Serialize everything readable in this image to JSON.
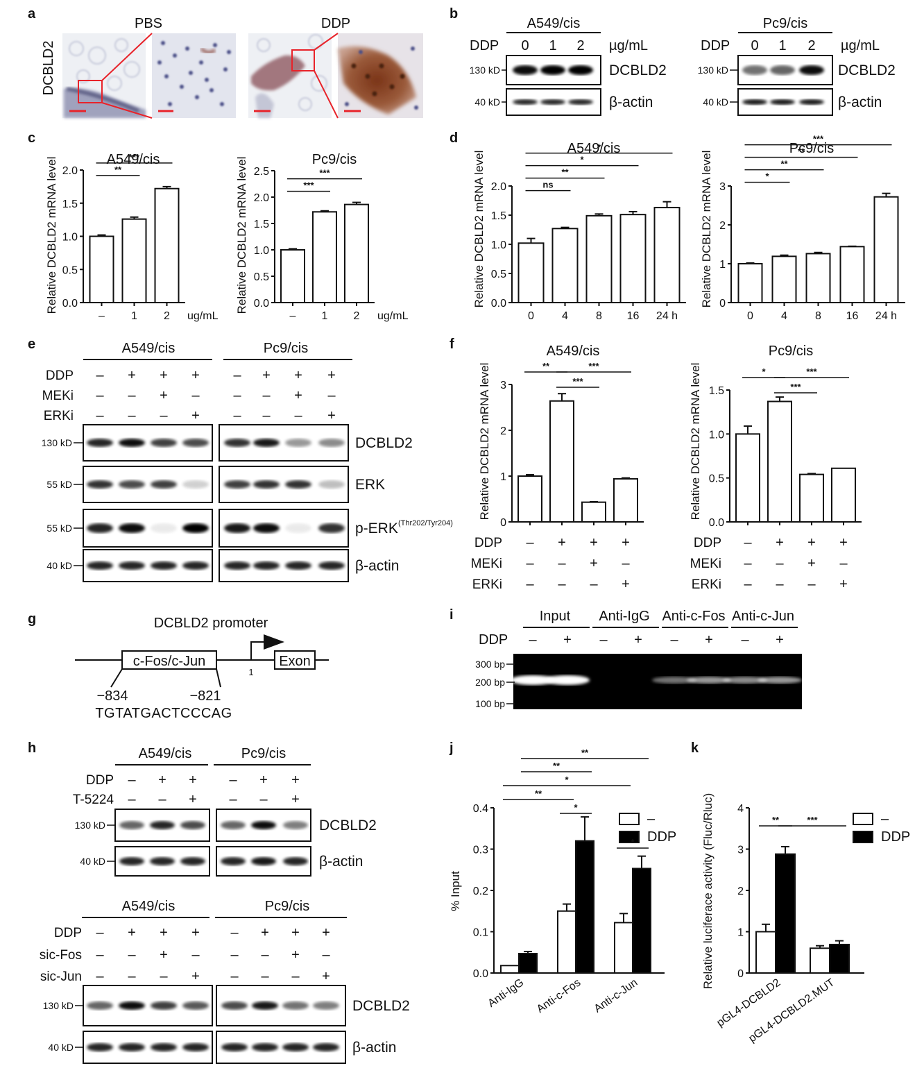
{
  "panel_labels": [
    "a",
    "b",
    "c",
    "d",
    "e",
    "f",
    "g",
    "h",
    "i",
    "j",
    "k"
  ],
  "a": {
    "ylabel": "DCBLD2",
    "conditions": [
      "PBS",
      "DDP"
    ]
  },
  "b": {
    "blots": [
      {
        "cell": "A549/cis",
        "treatment": "DDP",
        "doses": [
          "0",
          "1",
          "2"
        ],
        "unit": "µg/mL",
        "rows": [
          {
            "kd": "130 kD",
            "protein": "DCBLD2"
          },
          {
            "kd": "40 kD",
            "protein": "β-actin"
          }
        ]
      },
      {
        "cell": "Pc9/cis",
        "treatment": "DDP",
        "doses": [
          "0",
          "1",
          "2"
        ],
        "unit": "µg/mL",
        "rows": [
          {
            "kd": "130 kD",
            "protein": "DCBLD2"
          },
          {
            "kd": "40 kD",
            "protein": "β-actin"
          }
        ]
      }
    ]
  },
  "chart_data": [
    {
      "panel": "c",
      "type": "bar",
      "title": "A549/cis",
      "ylabel": "Relative DCBLD2 mRNA level",
      "categories": [
        "–",
        "1",
        "2"
      ],
      "xunit": "ug/mL",
      "values": [
        1.0,
        1.26,
        1.72
      ],
      "errors": [
        0.02,
        0.03,
        0.03
      ],
      "ylim": [
        0,
        2.0
      ],
      "yticks": [
        "0.0",
        "0.5",
        "1.0",
        "1.5",
        "2.0"
      ],
      "significance": [
        {
          "from": 0,
          "to": 1,
          "label": "**"
        },
        {
          "from": 0,
          "to": 2,
          "label": "***"
        }
      ]
    },
    {
      "panel": "c",
      "type": "bar",
      "title": "Pc9/cis",
      "ylabel": "Relative DCBLD2 mRNA level",
      "categories": [
        "–",
        "1",
        "2"
      ],
      "xunit": "ug/mL",
      "values": [
        1.0,
        1.72,
        1.86
      ],
      "errors": [
        0.02,
        0.02,
        0.04
      ],
      "ylim": [
        0,
        2.5
      ],
      "yticks": [
        "0.0",
        "0.5",
        "1.0",
        "1.5",
        "2.0",
        "2.5"
      ],
      "significance": [
        {
          "from": 0,
          "to": 1,
          "label": "***"
        },
        {
          "from": 0,
          "to": 2,
          "label": "***"
        }
      ]
    },
    {
      "panel": "d",
      "type": "bar",
      "title": "A549/cis",
      "ylabel": "Relative DCBLD2 mRNA level",
      "categories": [
        "0",
        "4",
        "8",
        "16",
        "24 h"
      ],
      "values": [
        1.02,
        1.27,
        1.49,
        1.51,
        1.63
      ],
      "errors": [
        0.08,
        0.02,
        0.03,
        0.05,
        0.1
      ],
      "ylim": [
        0,
        2.0
      ],
      "yticks": [
        "0.0",
        "0.5",
        "1.0",
        "1.5",
        "2.0"
      ],
      "significance": [
        {
          "from": 0,
          "to": 1,
          "label": "ns"
        },
        {
          "from": 0,
          "to": 2,
          "label": "**"
        },
        {
          "from": 0,
          "to": 3,
          "label": "*"
        },
        {
          "from": 0,
          "to": 4,
          "label": "*"
        }
      ]
    },
    {
      "panel": "d",
      "type": "bar",
      "title": "Pc9/cis",
      "ylabel": "Relative DCBLD2 mRNA level",
      "categories": [
        "0",
        "4",
        "8",
        "16",
        "24 h"
      ],
      "values": [
        1.0,
        1.19,
        1.26,
        1.44,
        2.72
      ],
      "errors": [
        0.02,
        0.03,
        0.03,
        0.01,
        0.09
      ],
      "ylim": [
        0,
        3
      ],
      "yticks": [
        "0",
        "1",
        "2",
        "3"
      ],
      "significance": [
        {
          "from": 0,
          "to": 1,
          "label": "*"
        },
        {
          "from": 0,
          "to": 2,
          "label": "**"
        },
        {
          "from": 0,
          "to": 3,
          "label": "**"
        },
        {
          "from": 0,
          "to": 4,
          "label": "***"
        }
      ]
    },
    {
      "panel": "f",
      "type": "bar",
      "title": "A549/cis",
      "ylabel": "Relative DCBLD2 mRNA level",
      "categories": [
        "1",
        "2",
        "3",
        "4"
      ],
      "values": [
        1.0,
        2.64,
        0.43,
        0.94
      ],
      "errors": [
        0.03,
        0.16,
        0.01,
        0.02
      ],
      "ylim": [
        0,
        3
      ],
      "yticks": [
        "0",
        "1",
        "2",
        "3"
      ],
      "treatments": [
        {
          "name": "DDP",
          "signs": [
            "–",
            "+",
            "+",
            "+"
          ]
        },
        {
          "name": "MEKi",
          "signs": [
            "–",
            "–",
            "+",
            "–"
          ]
        },
        {
          "name": "ERKi",
          "signs": [
            "–",
            "–",
            "–",
            "+"
          ]
        }
      ],
      "significance": [
        {
          "from": 0,
          "to": 1,
          "label": "**"
        },
        {
          "from": 1,
          "to": 2,
          "label": "***"
        },
        {
          "from": 1,
          "to": 3,
          "label": "***"
        }
      ]
    },
    {
      "panel": "f",
      "type": "bar",
      "title": "Pc9/cis",
      "ylabel": "Relative DCBLD2 mRNA level",
      "categories": [
        "1",
        "2",
        "3",
        "4"
      ],
      "values": [
        1.0,
        1.37,
        0.54,
        0.61
      ],
      "errors": [
        0.09,
        0.05,
        0.01,
        0.0
      ],
      "ylim": [
        0,
        1.5
      ],
      "yticks": [
        "0.0",
        "0.5",
        "1.0",
        "1.5"
      ],
      "treatments": [
        {
          "name": "DDP",
          "signs": [
            "–",
            "+",
            "+",
            "+"
          ]
        },
        {
          "name": "MEKi",
          "signs": [
            "–",
            "–",
            "+",
            "–"
          ]
        },
        {
          "name": "ERKi",
          "signs": [
            "–",
            "–",
            "–",
            "+"
          ]
        }
      ],
      "significance": [
        {
          "from": 0,
          "to": 1,
          "label": "*"
        },
        {
          "from": 1,
          "to": 2,
          "label": "***"
        },
        {
          "from": 1,
          "to": 3,
          "label": "***"
        }
      ]
    },
    {
      "panel": "j",
      "type": "bar",
      "ylabel": "% Input",
      "categories": [
        "Anti-IgG",
        "Anti-c-Fos",
        "Anti-c-Jun"
      ],
      "series": [
        {
          "name": "–",
          "color": "#ffffff",
          "values": [
            0.018,
            0.15,
            0.122
          ],
          "errors": [
            0.0,
            0.017,
            0.022
          ]
        },
        {
          "name": "DDP",
          "color": "#000000",
          "values": [
            0.047,
            0.32,
            0.253
          ],
          "errors": [
            0.005,
            0.058,
            0.03
          ]
        }
      ],
      "ylim": [
        0,
        0.4
      ],
      "yticks": [
        "0.0",
        "0.1",
        "0.2",
        "0.3",
        "0.4"
      ],
      "legend": "top-right",
      "significance": [
        {
          "label": "*"
        },
        {
          "label": "*"
        },
        {
          "label": "**"
        },
        {
          "label": "*"
        },
        {
          "label": "**"
        },
        {
          "label": "**"
        }
      ]
    },
    {
      "panel": "k",
      "type": "bar",
      "ylabel": "Relative luciferace activity (Fluc/Rluc)",
      "categories": [
        "pGL4-DCBLD2",
        "pGL4-DCBLD2.MUT"
      ],
      "series": [
        {
          "name": "–",
          "color": "#ffffff",
          "values": [
            1.0,
            0.6
          ],
          "errors": [
            0.18,
            0.06
          ]
        },
        {
          "name": "DDP",
          "color": "#000000",
          "values": [
            2.88,
            0.69
          ],
          "errors": [
            0.18,
            0.09
          ]
        }
      ],
      "ylim": [
        0,
        4
      ],
      "yticks": [
        "0",
        "1",
        "2",
        "3",
        "4"
      ],
      "legend": "top-right",
      "significance": [
        {
          "label": "**"
        },
        {
          "label": "***"
        }
      ]
    }
  ],
  "e": {
    "cells": [
      "A549/cis",
      "Pc9/cis"
    ],
    "treatments": [
      {
        "name": "DDP",
        "signs": [
          "–",
          "+",
          "+",
          "+"
        ]
      },
      {
        "name": "MEKi",
        "signs": [
          "–",
          "–",
          "+",
          "–"
        ]
      },
      {
        "name": "ERKi",
        "signs": [
          "–",
          "–",
          "–",
          "+"
        ]
      }
    ],
    "rows": [
      {
        "kd": "130 kD",
        "protein": "DCBLD2"
      },
      {
        "kd": "55 kD",
        "protein": "ERK"
      },
      {
        "kd": "55 kD",
        "protein": "p-ERK",
        "sup": "(Thr202/Tyr204)"
      },
      {
        "kd": "40 kD",
        "protein": "β-actin"
      }
    ]
  },
  "g": {
    "title": "DCBLD2 promoter",
    "site_label": "c-Fos/c-Jun",
    "exon_label": "Exon",
    "tss_label": "1",
    "pos_start": "−834",
    "pos_end": "−821",
    "sequence": "TGTATGACTCCCAG"
  },
  "i": {
    "groups": [
      "Input",
      "Anti-IgG",
      "Anti-c-Fos",
      "Anti-c-Jun"
    ],
    "treatment": "DDP",
    "signs": [
      "–",
      "+",
      "–",
      "+",
      "–",
      "+",
      "–",
      "+"
    ],
    "markers": [
      "300 bp",
      "200 bp",
      "100 bp"
    ]
  },
  "h1": {
    "cells": [
      "A549/cis",
      "Pc9/cis"
    ],
    "treatments": [
      {
        "name": "DDP",
        "signs": [
          "–",
          "+",
          "+"
        ]
      },
      {
        "name": "T-5224",
        "signs": [
          "–",
          "–",
          "+"
        ]
      }
    ],
    "rows": [
      {
        "kd": "130 kD",
        "protein": "DCBLD2"
      },
      {
        "kd": "40 kD",
        "protein": "β-actin"
      }
    ]
  },
  "h2": {
    "cells": [
      "A549/cis",
      "Pc9/cis"
    ],
    "treatments": [
      {
        "name": "DDP",
        "signs": [
          "–",
          "+",
          "+",
          "+"
        ]
      },
      {
        "name": "sic-Fos",
        "signs": [
          "–",
          "–",
          "+",
          "–"
        ]
      },
      {
        "name": "sic-Jun",
        "signs": [
          "–",
          "–",
          "–",
          "+"
        ]
      }
    ],
    "rows": [
      {
        "kd": "130 kD",
        "protein": "DCBLD2"
      },
      {
        "kd": "40 kD",
        "protein": "β-actin"
      }
    ]
  }
}
